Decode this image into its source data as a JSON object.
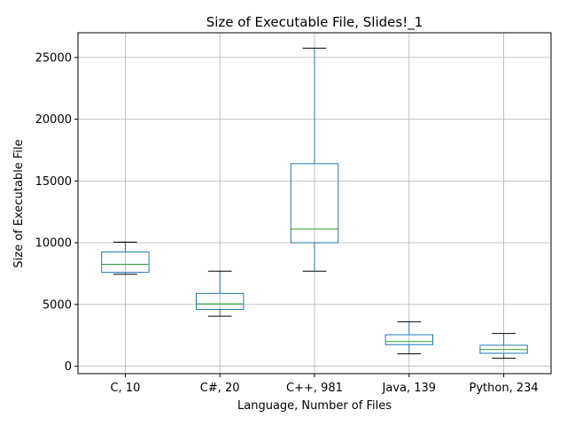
{
  "chart_data": {
    "type": "boxplot",
    "title": "Size of Executable File, Slides!_1",
    "xlabel": "Language, Number of Files",
    "ylabel": "Size of Executable File",
    "ylim": [
      -600,
      27000
    ],
    "yticks": [
      0,
      5000,
      10000,
      15000,
      20000,
      25000
    ],
    "grid": true,
    "categories": [
      "C, 10",
      "C#, 20",
      "C++, 981",
      "Java, 139",
      "Python, 234"
    ],
    "boxes": [
      {
        "whisker_low": 7450,
        "q1": 7600,
        "median": 8250,
        "q3": 9250,
        "whisker_high": 10050
      },
      {
        "whisker_low": 4050,
        "q1": 4600,
        "median": 5050,
        "q3": 5900,
        "whisker_high": 7700
      },
      {
        "whisker_low": 7700,
        "q1": 10000,
        "median": 11100,
        "q3": 16400,
        "whisker_high": 25750
      },
      {
        "whisker_low": 1000,
        "q1": 1750,
        "median": 2000,
        "q3": 2550,
        "whisker_high": 3600
      },
      {
        "whisker_low": 650,
        "q1": 1050,
        "median": 1350,
        "q3": 1700,
        "whisker_high": 2650
      }
    ],
    "colors": {
      "box": "#1f77b4",
      "median": "#2ca02c",
      "whisker": "#1f77b4",
      "cap": "#000000",
      "grid": "#b0b0b0"
    }
  }
}
